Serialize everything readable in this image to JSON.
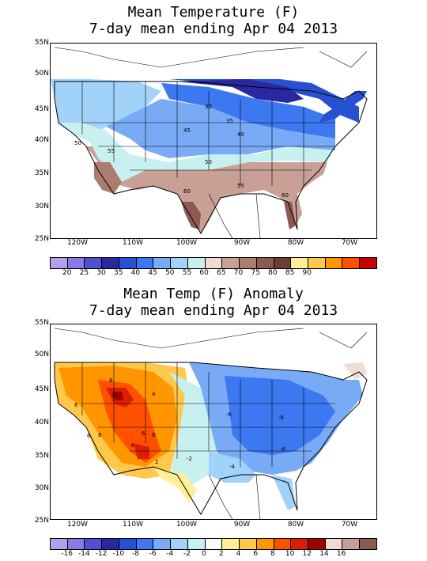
{
  "panel1": {
    "title_line1": "Mean Temperature (F)",
    "title_line2": "7-day mean ending Apr 04 2013",
    "lat_labels": [
      "55N",
      "50N",
      "45N",
      "40N",
      "35N",
      "30N",
      "25N"
    ],
    "lon_labels": [
      "120W",
      "110W",
      "100W",
      "90W",
      "80W",
      "70W"
    ],
    "colorbar_colors": [
      "#b4a0f0",
      "#8c78e6",
      "#5050d2",
      "#2828a0",
      "#2850d2",
      "#3c78f0",
      "#78aaf5",
      "#a0d2fa",
      "#c8f0f0",
      "#f0dcd2",
      "#c8a096",
      "#aa7d6e",
      "#8c5a50",
      "#6e3c32",
      "#fff096",
      "#ffc84b",
      "#ff9600",
      "#ff5000",
      "#c80000"
    ],
    "colorbar_labels": [
      "20",
      "25",
      "30",
      "35",
      "40",
      "45",
      "50",
      "55",
      "60",
      "65",
      "70",
      "75",
      "80",
      "85",
      "90"
    ],
    "contour_labels": [
      "30",
      "35",
      "40",
      "45",
      "50",
      "50",
      "55",
      "55",
      "60",
      "60"
    ]
  },
  "panel2": {
    "title_line1": "Mean Temp (F) Anomaly",
    "title_line2": "7-day mean ending Apr 04 2013",
    "lat_labels": [
      "55N",
      "50N",
      "45N",
      "40N",
      "35N",
      "30N",
      "25N"
    ],
    "lon_labels": [
      "120W",
      "110W",
      "100W",
      "90W",
      "80W",
      "70W"
    ],
    "colorbar_colors": [
      "#b4a0f0",
      "#8c78e6",
      "#5050d2",
      "#2828a0",
      "#2850d2",
      "#3c78f0",
      "#78aaf5",
      "#a0d2fa",
      "#c8f0f0",
      "#fafafa",
      "#fff096",
      "#ffc84b",
      "#ff9600",
      "#ff5000",
      "#dc1e00",
      "#a00000",
      "#f0dcd2",
      "#c8a096",
      "#8c5a50"
    ],
    "colorbar_labels": [
      "-16",
      "-14",
      "-12",
      "-10",
      "-8",
      "-6",
      "-4",
      "-2",
      "0",
      "2",
      "4",
      "6",
      "8",
      "10",
      "12",
      "14",
      "16"
    ],
    "contour_labels": [
      "8",
      "6",
      "8",
      "8",
      "4",
      "6",
      "6",
      "6",
      "4",
      "2",
      "-2",
      "-4",
      "-6",
      "-6",
      "-6"
    ]
  }
}
